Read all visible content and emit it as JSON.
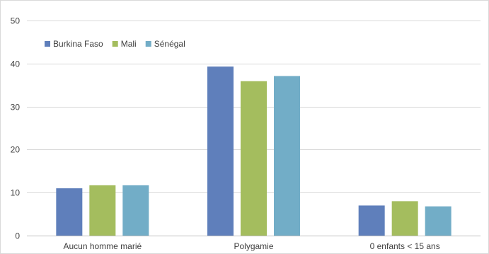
{
  "chart_data": {
    "type": "bar",
    "title": "",
    "xlabel": "",
    "ylabel": "",
    "categories": [
      "Aucun homme marié",
      "Polygamie",
      "0 enfants < 15 ans"
    ],
    "series": [
      {
        "name": "Burkina Faso",
        "color": "#5f7fbb",
        "values": [
          11,
          39.3,
          7
        ]
      },
      {
        "name": "Mali",
        "color": "#a4bd5e",
        "values": [
          11.7,
          35.9,
          8
        ]
      },
      {
        "name": "Sénégal",
        "color": "#72adc7",
        "values": [
          11.7,
          37.1,
          6.8
        ]
      }
    ],
    "ylim": [
      0,
      50
    ],
    "yticks": [
      0,
      10,
      20,
      30,
      40,
      50
    ],
    "grid": true,
    "legend_position": "top-left"
  }
}
